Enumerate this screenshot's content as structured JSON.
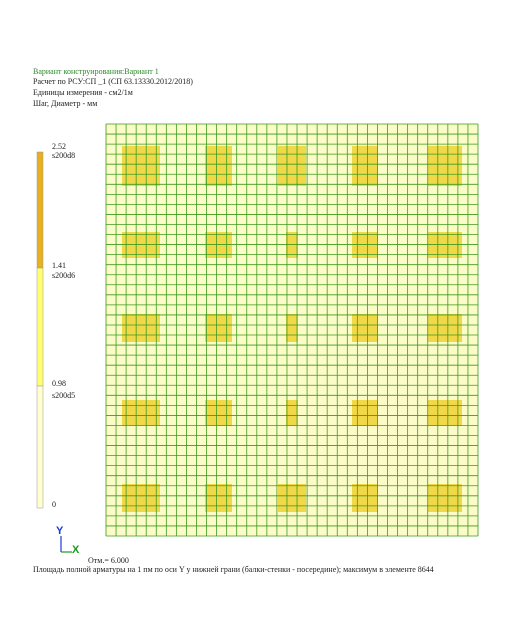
{
  "header": {
    "variant": "Вариант конструирования:Вариант 1",
    "calculation": "Расчет по РСУ:СП _1 (СП 63.13330.2012/2018)",
    "units": "Единицы измерения - см2/1м",
    "step": "Шаг, Диаметр - мм"
  },
  "legend": {
    "levels": [
      {
        "value": 2.52,
        "rebar": "s200d8"
      },
      {
        "value": 1.41,
        "rebar": "s200d6"
      },
      {
        "value": 0.98,
        "rebar": "s200d5"
      },
      {
        "value": 0
      }
    ]
  },
  "axes": {
    "y": "Y",
    "x": "X"
  },
  "elevation": "Отм.= 6.000",
  "caption": "Площадь полной арматуры на 1 пм по оси Y у нижней грани (балки-стенки - посередине); максимум в элементе 8644"
}
